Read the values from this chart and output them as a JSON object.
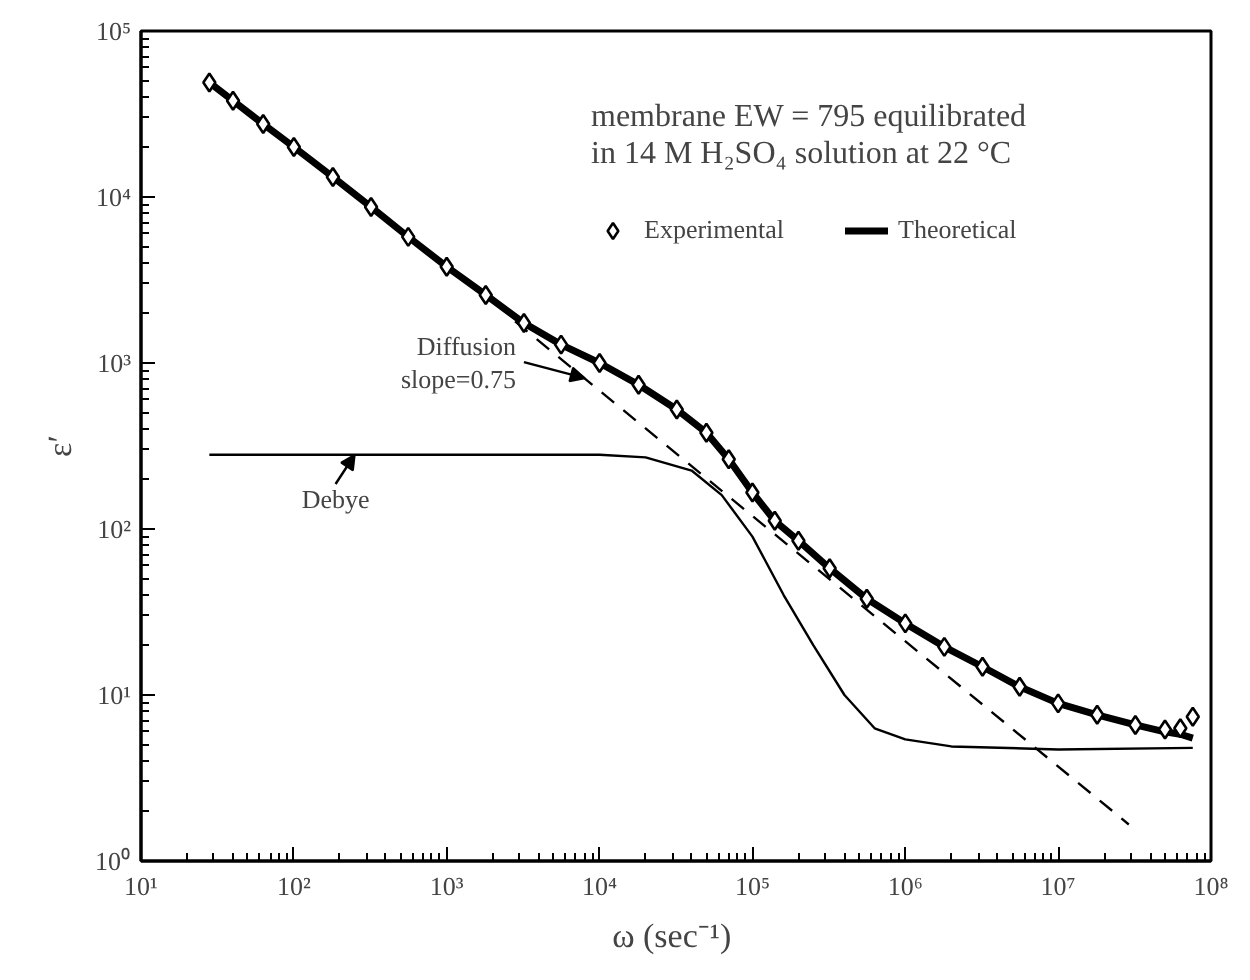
{
  "chart_data": {
    "type": "line",
    "log": "xy",
    "grid": false,
    "legend": "top right",
    "xlabel": "ω  (sec⁻¹)",
    "ylabel": "ε′",
    "annotations": [
      "membrane EW = 795 equilibrated\nin 14 M H₂SO₄  solution at 22 °C",
      {
        "text": "Diffusion\nslope=0.75",
        "x": 8000,
        "y": 810
      },
      {
        "text": "Debye",
        "x": 250,
        "y": 280
      }
    ],
    "xlim": [
      10,
      100000000
    ],
    "ylim": [
      1,
      100000
    ],
    "xticks": [
      {
        "value": 10,
        "label": "10¹"
      },
      {
        "value": 100,
        "label": "10²"
      },
      {
        "value": 1000,
        "label": "10³"
      },
      {
        "value": 10000,
        "label": "10⁴"
      },
      {
        "value": 100000,
        "label": "10⁵"
      },
      {
        "value": 1000000,
        "label": "10⁶"
      },
      {
        "value": 10000000,
        "label": "10⁷"
      },
      {
        "value": 100000000,
        "label": "10⁸"
      }
    ],
    "yticks": [
      {
        "value": 1,
        "label": "10⁰"
      },
      {
        "value": 10,
        "label": "10¹"
      },
      {
        "value": 100,
        "label": "10²"
      },
      {
        "value": 1000,
        "label": "10³"
      },
      {
        "value": 10000,
        "label": "10⁴"
      },
      {
        "value": 100000,
        "label": "10⁵"
      }
    ],
    "series": [
      {
        "name": "Theoretical",
        "line_style": "solid",
        "color": "#000000",
        "x": [
          28,
          40,
          63,
          100,
          180,
          320,
          560,
          1000,
          1800,
          3200,
          5600,
          10000,
          18000,
          32000,
          50000,
          70000,
          100000,
          140000,
          200000,
          320000,
          560000,
          1000000,
          1800000,
          3200000,
          5600000,
          10000000,
          18000000,
          32000000,
          50000000,
          63000000,
          76000000
        ],
        "values": [
          49000,
          38000,
          27500,
          20000,
          13200,
          8700,
          5750,
          3800,
          2570,
          1740,
          1290,
          1000,
          740,
          525,
          380,
          263,
          166,
          112,
          85,
          58,
          38,
          27,
          19.5,
          14.8,
          11.2,
          8.9,
          7.6,
          6.6,
          6.0,
          5.8,
          5.5
        ]
      },
      {
        "line_style": "dashed",
        "color": "#000000",
        "x": [
          2800,
          29000000
        ],
        "values": [
          1780,
          1.66
        ]
      },
      {
        "line_style": "solid",
        "color": "#000000",
        "x": [
          28,
          10000,
          20000,
          40000,
          63000,
          100000,
          160000,
          250000,
          400000,
          630000,
          1000000,
          2000000,
          10000000,
          76000000
        ],
        "values": [
          280,
          280,
          270,
          225,
          160,
          90,
          40,
          20,
          10,
          6.3,
          5.4,
          4.9,
          4.7,
          4.8
        ]
      },
      {
        "name": "Experimental",
        "type": "scatter",
        "marker": "diamond",
        "color": "#000000",
        "x": [
          28,
          40,
          63,
          100,
          180,
          320,
          560,
          1000,
          1800,
          3200,
          5600,
          10000,
          18000,
          32000,
          50000,
          70000,
          100000,
          140000,
          200000,
          320000,
          560000,
          1000000,
          1800000,
          3200000,
          5600000,
          10000000,
          18000000,
          32000000,
          50000000,
          63000000,
          76000000
        ],
        "values": [
          49000,
          38000,
          27500,
          20000,
          13200,
          8700,
          5750,
          3800,
          2570,
          1740,
          1290,
          1000,
          740,
          525,
          380,
          263,
          166,
          112,
          85,
          58,
          38,
          27,
          19.5,
          14.8,
          11.2,
          8.9,
          7.6,
          6.6,
          6.2,
          6.3,
          7.4
        ]
      }
    ]
  }
}
